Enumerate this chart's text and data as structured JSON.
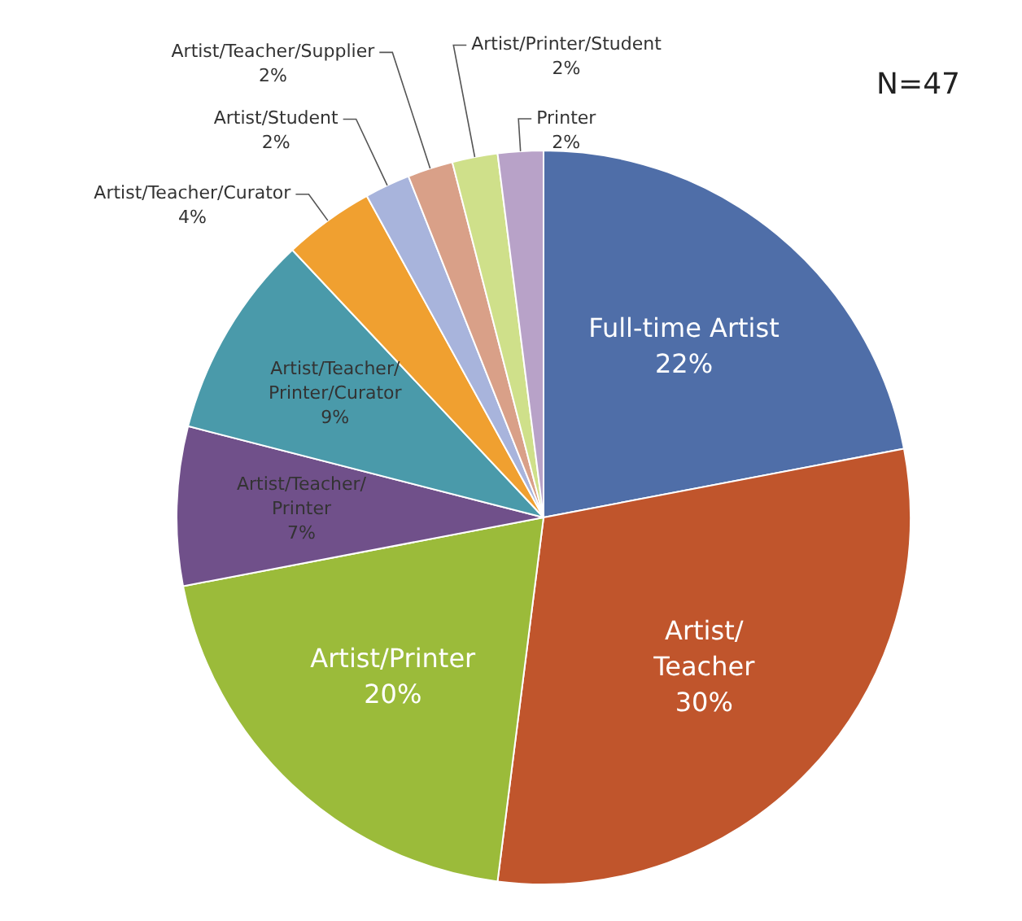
{
  "chart_data": {
    "type": "pie",
    "categories": [
      "Full-time Artist",
      "Artist/Teacher",
      "Artist/Printer",
      "Artist/Teacher/Printer",
      "Artist/Teacher/Printer/Curator",
      "Artist/Teacher/Curator",
      "Artist/Student",
      "Artist/Teacher/Supplier",
      "Artist/Printer/Student",
      "Printer"
    ],
    "values": [
      22,
      30,
      20,
      7,
      9,
      4,
      2,
      2,
      2,
      2
    ],
    "value_labels": [
      "22%",
      "30%",
      "20%",
      "7%",
      "9%",
      "4%",
      "2%",
      "2%",
      "2%",
      "2%"
    ],
    "colors": [
      "#4f6ea8",
      "#c0552c",
      "#9bbb3a",
      "#70508a",
      "#4a9aaa",
      "#f0a030",
      "#a8b4dc",
      "#d9a088",
      "#cfe08a",
      "#b8a2c8"
    ],
    "annotations": [
      "N=47"
    ],
    "legend": false
  }
}
